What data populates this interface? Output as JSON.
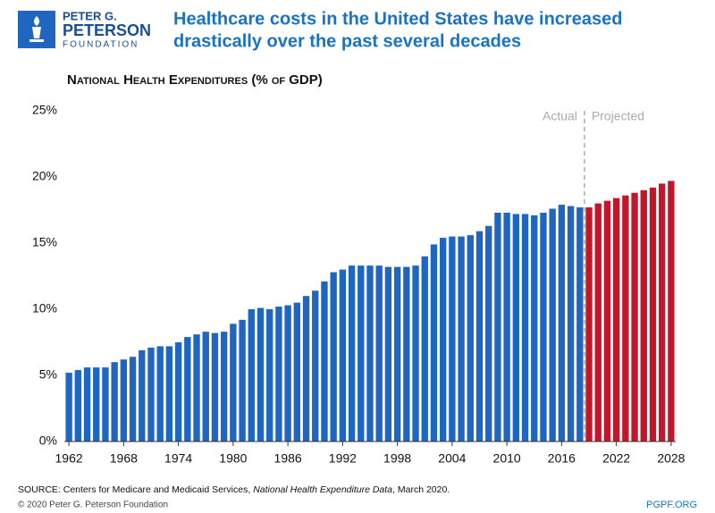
{
  "logo": [
    "PETER G.",
    "PETERSON",
    "FOUNDATION"
  ],
  "title": [
    "Healthcare costs in the United States have increased",
    "drastically over the past several decades"
  ],
  "footer": {
    "source_prefix": "SOURCE: Centers for Medicare and Medicaid Services, ",
    "source_italic": "National Health Expenditure Data",
    "source_suffix": ", March 2020.",
    "copyright": "© 2020 Peter G. Peterson Foundation",
    "site": "PGPF.ORG"
  },
  "chart_data": {
    "type": "bar",
    "title": "National Health Expenditures (% of GDP)",
    "x": [
      1962,
      1963,
      1964,
      1965,
      1966,
      1967,
      1968,
      1969,
      1970,
      1971,
      1972,
      1973,
      1974,
      1975,
      1976,
      1977,
      1978,
      1979,
      1980,
      1981,
      1982,
      1983,
      1984,
      1985,
      1986,
      1987,
      1988,
      1989,
      1990,
      1991,
      1992,
      1993,
      1994,
      1995,
      1996,
      1997,
      1998,
      1999,
      2000,
      2001,
      2002,
      2003,
      2004,
      2005,
      2006,
      2007,
      2008,
      2009,
      2010,
      2011,
      2012,
      2013,
      2014,
      2015,
      2016,
      2017,
      2018,
      2019,
      2020,
      2021,
      2022,
      2023,
      2024,
      2025,
      2026,
      2027,
      2028
    ],
    "series": [
      {
        "name": "Actual",
        "color": "#1f66c1",
        "values": [
          5.2,
          5.4,
          5.6,
          5.6,
          5.6,
          6.0,
          6.2,
          6.4,
          6.9,
          7.1,
          7.2,
          7.2,
          7.5,
          7.9,
          8.1,
          8.3,
          8.2,
          8.3,
          8.9,
          9.2,
          10.0,
          10.1,
          10.0,
          10.2,
          10.3,
          10.5,
          11.0,
          11.4,
          12.1,
          12.8,
          13.0,
          13.3,
          13.3,
          13.3,
          13.3,
          13.2,
          13.2,
          13.2,
          13.3,
          14.0,
          14.9,
          15.4,
          15.5,
          15.5,
          15.6,
          15.9,
          16.3,
          17.3,
          17.3,
          17.2,
          17.2,
          17.1,
          17.3,
          17.6,
          17.9,
          17.8,
          17.7,
          null,
          null,
          null,
          null,
          null,
          null,
          null,
          null,
          null,
          null
        ]
      },
      {
        "name": "Projected",
        "color": "#c2172b",
        "values": [
          null,
          null,
          null,
          null,
          null,
          null,
          null,
          null,
          null,
          null,
          null,
          null,
          null,
          null,
          null,
          null,
          null,
          null,
          null,
          null,
          null,
          null,
          null,
          null,
          null,
          null,
          null,
          null,
          null,
          null,
          null,
          null,
          null,
          null,
          null,
          null,
          null,
          null,
          null,
          null,
          null,
          null,
          null,
          null,
          null,
          null,
          null,
          null,
          null,
          null,
          null,
          null,
          null,
          null,
          null,
          null,
          null,
          17.7,
          18.0,
          18.2,
          18.4,
          18.6,
          18.8,
          19.0,
          19.2,
          19.5,
          19.7
        ]
      }
    ],
    "xlim": [
      1961.5,
      2028.5
    ],
    "xticks": [
      1962,
      1968,
      1974,
      1980,
      1986,
      1992,
      1998,
      2004,
      2010,
      2016,
      2022,
      2028
    ],
    "ylim": [
      0,
      25
    ],
    "yticks": [
      {
        "value": 0,
        "label": "0%"
      },
      {
        "value": 5,
        "label": "5%"
      },
      {
        "value": 10,
        "label": "10%"
      },
      {
        "value": 15,
        "label": "15%"
      },
      {
        "value": 20,
        "label": "20%"
      },
      {
        "value": 25,
        "label": "25%"
      }
    ],
    "grid": false
  }
}
